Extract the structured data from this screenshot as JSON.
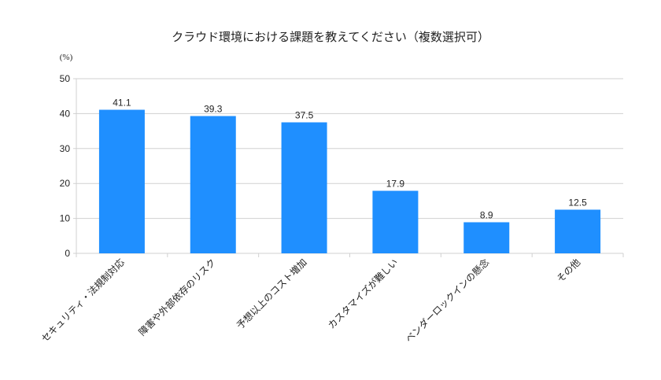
{
  "chart_data": {
    "type": "bar",
    "title": "クラウド環境における課題を教えてください（複数選択可）",
    "ylabel": "(%)",
    "xlabel": "",
    "categories": [
      "セキュリティ・法規制対応",
      "障害や外部依存のリスク",
      "予想以上のコスト増加",
      "カスタマイズが難しい",
      "ベンダーロックインの懸念",
      "その他"
    ],
    "values": [
      41.1,
      39.3,
      37.5,
      17.9,
      8.9,
      12.5
    ],
    "ylim": [
      0,
      50
    ],
    "yticks": [
      0,
      10,
      20,
      30,
      40,
      50
    ],
    "grid": true,
    "data_labels": true,
    "bar_color": "#1f8fff"
  }
}
